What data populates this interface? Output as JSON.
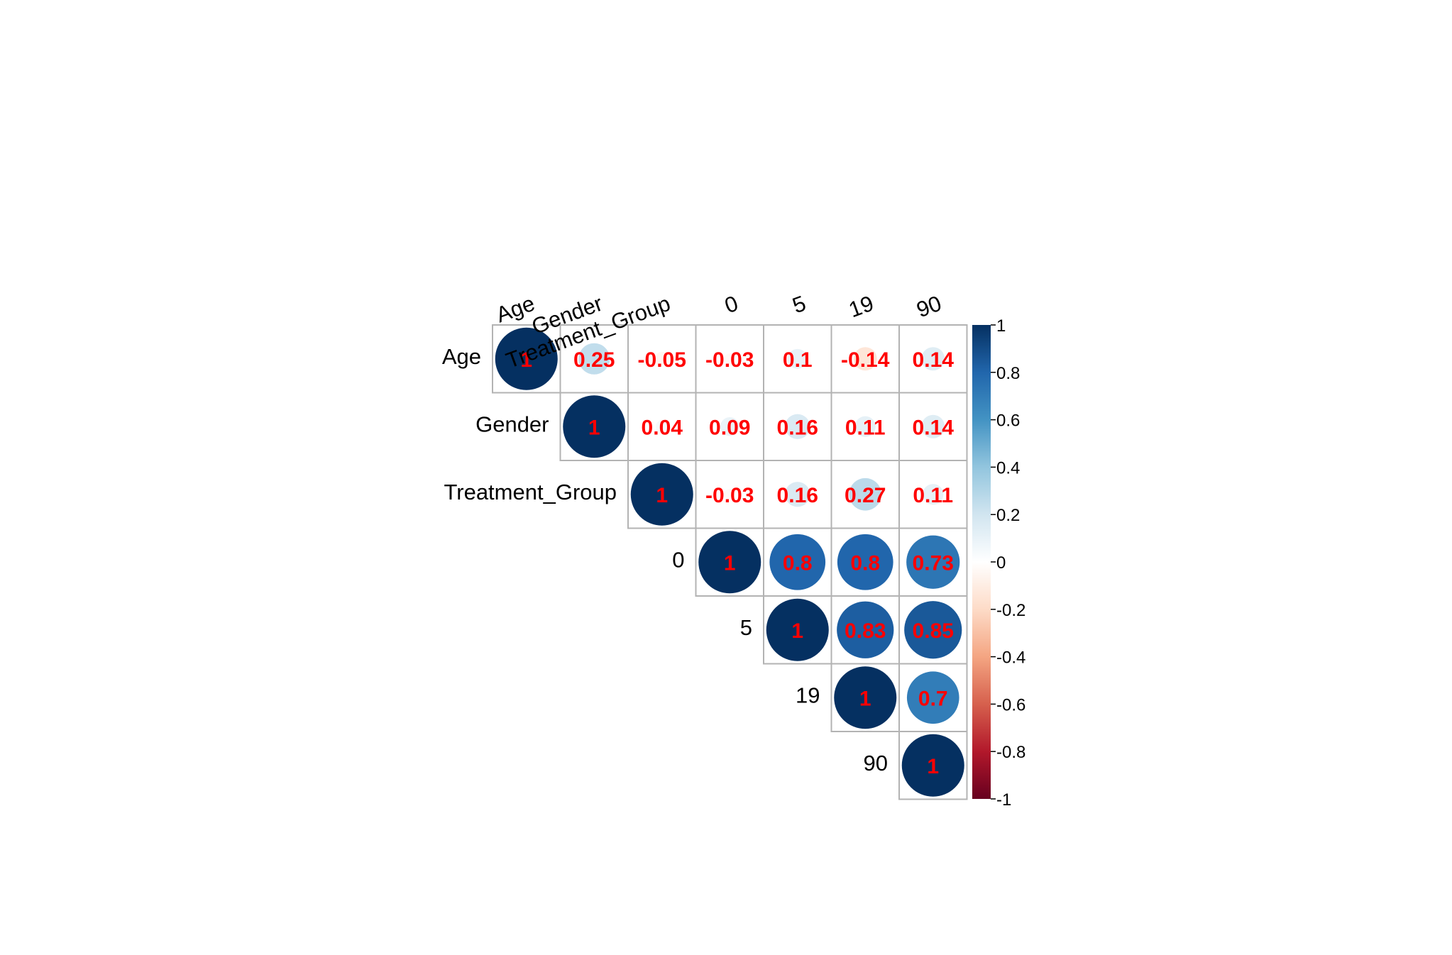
{
  "chart_data": {
    "type": "heatmap",
    "subtype": "correlation-matrix-upper-circles",
    "variables": [
      "Age",
      "Gender",
      "Treatment_Group",
      "0",
      "5",
      "19",
      "90"
    ],
    "matrix": [
      [
        1,
        0.25,
        -0.05,
        -0.03,
        0.1,
        -0.14,
        0.14
      ],
      [
        0.25,
        1,
        0.04,
        0.09,
        0.16,
        0.11,
        0.14
      ],
      [
        -0.05,
        0.04,
        1,
        -0.03,
        0.16,
        0.27,
        0.11
      ],
      [
        -0.03,
        0.09,
        -0.03,
        1,
        0.8,
        0.8,
        0.73
      ],
      [
        0.1,
        0.16,
        0.16,
        0.8,
        1,
        0.83,
        0.85
      ],
      [
        -0.14,
        0.11,
        0.27,
        0.8,
        0.83,
        1,
        0.7
      ],
      [
        0.14,
        0.14,
        0.11,
        0.73,
        0.85,
        0.7,
        1
      ]
    ],
    "labels": [
      [
        "1",
        "0.25",
        "-0.05",
        "-0.03",
        "0.1",
        "-0.14",
        "0.14"
      ],
      [
        "",
        "1",
        "0.04",
        "0.09",
        "0.16",
        "0.11",
        "0.14"
      ],
      [
        "",
        "",
        "1",
        "-0.03",
        "0.16",
        "0.27",
        "0.11"
      ],
      [
        "",
        "",
        "",
        "1",
        "0.8",
        "0.8",
        "0.73"
      ],
      [
        "",
        "",
        "",
        "",
        "1",
        "0.83",
        "0.85"
      ],
      [
        "",
        "",
        "",
        "",
        "",
        "1",
        "0.7"
      ],
      [
        "",
        "",
        "",
        "",
        "",
        "",
        "1"
      ]
    ],
    "display": "upper-triangle",
    "shape": "circle",
    "colorbar": {
      "range": [
        -1,
        1
      ],
      "ticks": [
        "1",
        "0.8",
        "0.6",
        "0.4",
        "0.2",
        "0",
        "-0.2",
        "-0.4",
        "-0.6",
        "-0.8",
        "-1"
      ],
      "stops": [
        "#67001f",
        "#b2182b",
        "#d6604d",
        "#f4a582",
        "#fddbc7",
        "#ffffff",
        "#d1e5f0",
        "#92c5de",
        "#4393c3",
        "#2166ac",
        "#053061"
      ]
    },
    "grid": true,
    "legend_position": "right",
    "label_color": "#ff0000"
  }
}
